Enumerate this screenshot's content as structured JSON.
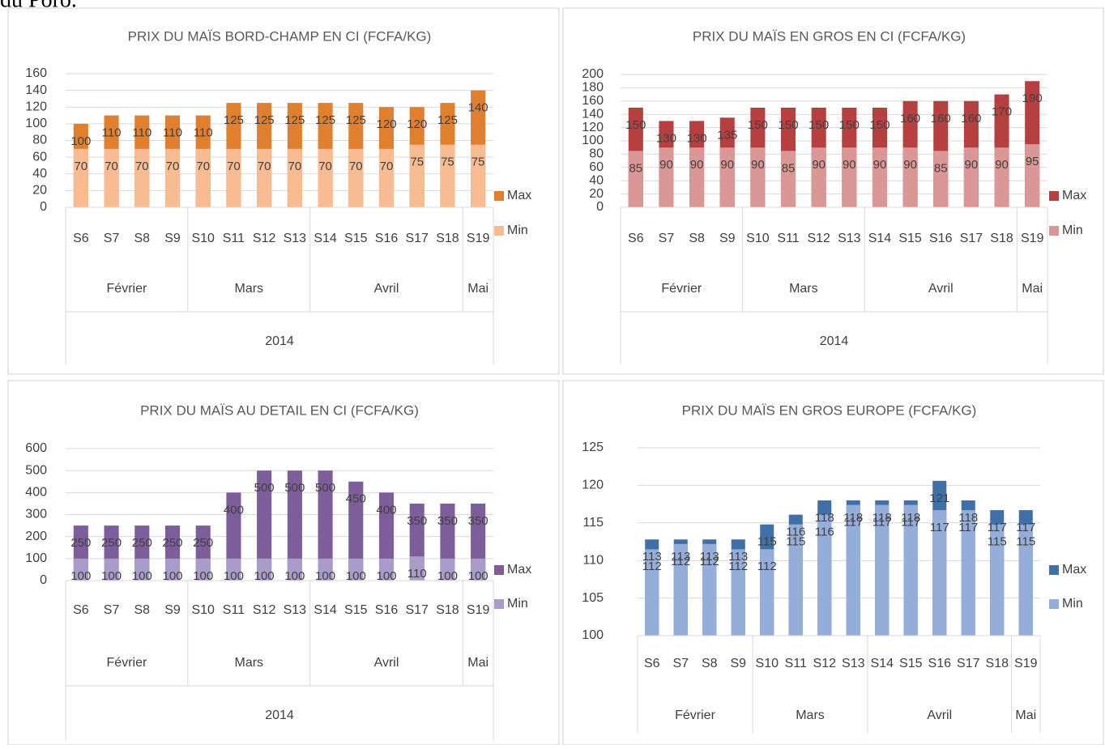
{
  "document": {
    "text": "du Poro."
  },
  "chart_data": [
    {
      "type": "bar",
      "title": "PRIX DU MAÏS BORD-CHAMP EN CI (FCFA/KG)",
      "categories": [
        "S6",
        "S7",
        "S8",
        "S9",
        "S10",
        "S11",
        "S12",
        "S13",
        "S14",
        "S15",
        "S16",
        "S17",
        "S18",
        "S19"
      ],
      "months": [
        "Février",
        null,
        null,
        null,
        "Mars",
        null,
        null,
        null,
        "Avril",
        null,
        null,
        null,
        null,
        "Mai"
      ],
      "year": "2014",
      "series": [
        {
          "name": "Max",
          "color": "#e0802e",
          "values": [
            100,
            110,
            110,
            110,
            110,
            125,
            125,
            125,
            125,
            125,
            120,
            120,
            125,
            140
          ]
        },
        {
          "name": "Min",
          "color": "#f9bb91",
          "values": [
            70,
            70,
            70,
            70,
            70,
            70,
            70,
            70,
            70,
            70,
            70,
            75,
            75,
            75
          ]
        }
      ],
      "ylim": [
        0,
        160
      ],
      "yticks": [
        0,
        20,
        40,
        60,
        80,
        100,
        120,
        140,
        160
      ],
      "grid": true
    },
    {
      "type": "bar",
      "title": "PRIX DU MAÏS EN GROS EN CI (FCFA/KG)",
      "categories": [
        "S6",
        "S7",
        "S8",
        "S9",
        "S10",
        "S11",
        "S12",
        "S13",
        "S14",
        "S15",
        "S16",
        "S17",
        "S18",
        "S19"
      ],
      "months": [
        "Février",
        null,
        null,
        null,
        "Mars",
        null,
        null,
        null,
        "Avril",
        null,
        null,
        null,
        null,
        "Mai"
      ],
      "year": "2014",
      "series": [
        {
          "name": "Max",
          "color": "#b5403f",
          "values": [
            150,
            130,
            130,
            135,
            150,
            150,
            150,
            150,
            150,
            160,
            160,
            160,
            170,
            190
          ]
        },
        {
          "name": "Min",
          "color": "#da9796",
          "values": [
            85,
            90,
            90,
            90,
            90,
            85,
            90,
            90,
            90,
            90,
            85,
            90,
            90,
            95
          ]
        }
      ],
      "ylim": [
        0,
        200
      ],
      "yticks": [
        0,
        20,
        40,
        60,
        80,
        100,
        120,
        140,
        160,
        180,
        200
      ],
      "grid": true
    },
    {
      "type": "bar",
      "title": "PRIX DU MAÏS AU DETAIL EN CI (FCFA/KG)",
      "categories": [
        "S6",
        "S7",
        "S8",
        "S9",
        "S10",
        "S11",
        "S12",
        "S13",
        "S14",
        "S15",
        "S16",
        "S17",
        "S18",
        "S19"
      ],
      "months": [
        "Février",
        null,
        null,
        null,
        "Mars",
        null,
        null,
        null,
        "Avril",
        null,
        null,
        null,
        null,
        "Mai"
      ],
      "year": "2014",
      "series": [
        {
          "name": "Max",
          "color": "#7d5e9b",
          "values": [
            250,
            250,
            250,
            250,
            250,
            400,
            500,
            500,
            500,
            450,
            400,
            350,
            350,
            350
          ]
        },
        {
          "name": "Min",
          "color": "#aa9cc8",
          "values": [
            100,
            100,
            100,
            100,
            100,
            100,
            100,
            100,
            100,
            100,
            100,
            110,
            100,
            100
          ]
        }
      ],
      "ylim": [
        0,
        600
      ],
      "yticks": [
        0,
        100,
        200,
        300,
        400,
        500,
        600
      ],
      "grid": true
    },
    {
      "type": "bar",
      "title": "PRIX DU MAÏS EN GROS EUROPE (FCFA/KG)",
      "categories": [
        "S6",
        "S7",
        "S8",
        "S9",
        "S10",
        "S11",
        "S12",
        "S13",
        "S14",
        "S15",
        "S16",
        "S17",
        "S18",
        "S19"
      ],
      "months": [
        "Février",
        null,
        null,
        null,
        "Mars",
        null,
        null,
        null,
        "Avril",
        null,
        null,
        null,
        null,
        "Mai"
      ],
      "series": [
        {
          "name": "Max",
          "color": "#4170a8",
          "values": [
            112.8,
            112.8,
            112.8,
            112.8,
            114.8,
            116.1,
            118,
            118,
            118,
            118,
            120.6,
            118,
            116.7,
            116.7
          ],
          "value_labels": [
            "113",
            "113",
            "113",
            "113",
            "115",
            "116",
            "118",
            "118",
            "118",
            "118",
            "121",
            "118",
            "117",
            "117"
          ]
        },
        {
          "name": "Min",
          "color": "#94aed9",
          "values": [
            111.5,
            112.2,
            112.2,
            111.5,
            111.5,
            114.8,
            116.1,
            117.4,
            117.4,
            117.4,
            116.7,
            116.7,
            114.8,
            114.8
          ],
          "value_labels": [
            "112",
            "112",
            "112",
            "112",
            "112",
            "115",
            "116",
            "117",
            "117",
            "117",
            "117",
            "117",
            "115",
            "115"
          ]
        }
      ],
      "ylim": [
        100,
        125
      ],
      "yticks": [
        100,
        105,
        110,
        115,
        120,
        125
      ],
      "grid": true
    }
  ]
}
